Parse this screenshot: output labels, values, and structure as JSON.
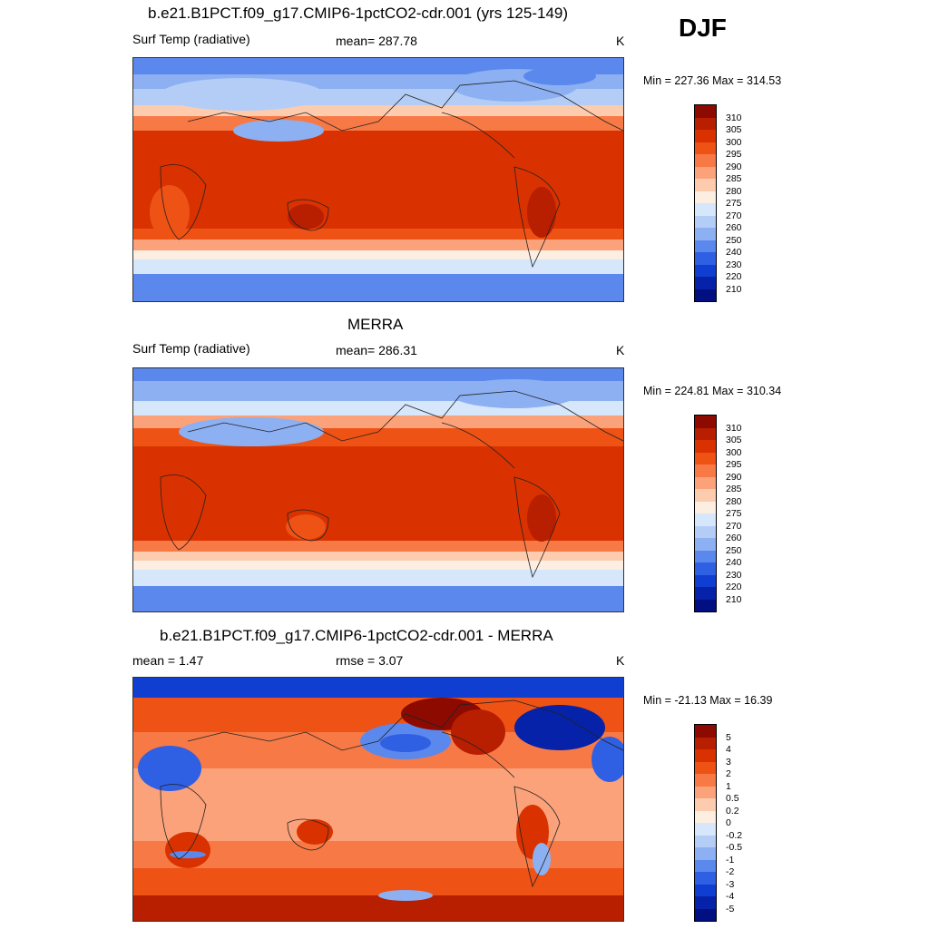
{
  "season": "DJF",
  "units_label": "K",
  "panels": [
    {
      "title": "b.e21.B1PCT.f09_g17.CMIP6-1pctCO2-cdr.001 (yrs 125-149)",
      "left_label": "Surf Temp (radiative)",
      "center_label": "mean= 287.78",
      "right_label": "K",
      "minmax": "Min = 227.36 Max = 314.53"
    },
    {
      "title": "MERRA",
      "left_label": "Surf Temp (radiative)",
      "center_label": "mean= 286.31",
      "right_label": "K",
      "minmax": "Min = 224.81 Max = 310.34"
    },
    {
      "title": "b.e21.B1PCT.f09_g17.CMIP6-1pctCO2-cdr.001 - MERRA",
      "left_label": "mean =   1.47",
      "center_label": "rmse =   3.07",
      "right_label": "K",
      "minmax": "Min = -21.13 Max =  16.39"
    }
  ],
  "colorbar_abs": {
    "labels": [
      "310",
      "305",
      "300",
      "295",
      "290",
      "285",
      "280",
      "275",
      "270",
      "260",
      "250",
      "240",
      "230",
      "220",
      "210"
    ],
    "colors": [
      "#8c0a00",
      "#b81e00",
      "#d93200",
      "#ee5215",
      "#f77a46",
      "#fba27a",
      "#fdccaf",
      "#fdeee2",
      "#d6e6fb",
      "#b3cdf7",
      "#8cb0f2",
      "#5b88ec",
      "#2f5fe3",
      "#103ed0",
      "#0522a8",
      "#020f80"
    ]
  },
  "colorbar_diff": {
    "labels": [
      "5",
      "4",
      "3",
      "2",
      "1",
      "0.5",
      "0.2",
      "0",
      "-0.2",
      "-0.5",
      "-1",
      "-2",
      "-3",
      "-4",
      "-5"
    ],
    "colors": [
      "#8c0a00",
      "#b81e00",
      "#d93200",
      "#ee5215",
      "#f77a46",
      "#fba27a",
      "#fdccaf",
      "#fdeee2",
      "#d6e6fb",
      "#b3cdf7",
      "#8cb0f2",
      "#5b88ec",
      "#2f5fe3",
      "#103ed0",
      "#0522a8",
      "#020f80"
    ]
  }
}
